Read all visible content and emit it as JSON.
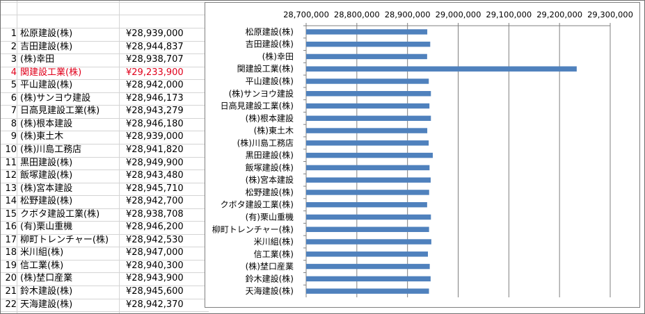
{
  "table": {
    "rows": [
      {
        "no": "1",
        "name": "松原建設(株)",
        "value": "¥28,939,000"
      },
      {
        "no": "2",
        "name": "吉田建設(株)",
        "value": "¥28,944,837"
      },
      {
        "no": "3",
        "name": "(株)幸田",
        "value": "¥28,938,707"
      },
      {
        "no": "4",
        "name": "関建設工業(株)",
        "value": "¥29,233,900",
        "highlight": true
      },
      {
        "no": "5",
        "name": "平山建設(株)",
        "value": "¥28,942,000"
      },
      {
        "no": "6",
        "name": "(株)サンヨウ建設",
        "value": "¥28,946,173"
      },
      {
        "no": "7",
        "name": "日高見建設工業(株)",
        "value": "¥28,943,279"
      },
      {
        "no": "8",
        "name": "(株)根本建設",
        "value": "¥28,946,180"
      },
      {
        "no": "9",
        "name": "(株)東土木",
        "value": "¥28,939,000"
      },
      {
        "no": "10",
        "name": "(株)川島工務店",
        "value": "¥28,941,820"
      },
      {
        "no": "11",
        "name": "黒田建設(株)",
        "value": "¥28,949,900"
      },
      {
        "no": "12",
        "name": "飯塚建設(株)",
        "value": "¥28,943,480"
      },
      {
        "no": "13",
        "name": "(株)宮本建設",
        "value": "¥28,945,710"
      },
      {
        "no": "14",
        "name": "松野建設(株)",
        "value": "¥28,942,700"
      },
      {
        "no": "15",
        "name": "クボタ建設工業(株)",
        "value": "¥28,938,708"
      },
      {
        "no": "16",
        "name": "(有)栗山重機",
        "value": "¥28,946,200"
      },
      {
        "no": "17",
        "name": "柳町トレンチャー(株)",
        "value": "¥28,942,530"
      },
      {
        "no": "18",
        "name": "米川組(株)",
        "value": "¥28,947,000"
      },
      {
        "no": "19",
        "name": "信工業(株)",
        "value": "¥28,940,300"
      },
      {
        "no": "20",
        "name": "(株)埜口産業",
        "value": "¥28,943,900"
      },
      {
        "no": "21",
        "name": "鈴木建設(株)",
        "value": "¥28,945,600"
      },
      {
        "no": "22",
        "name": "天海建設(株)",
        "value": "¥28,942,370"
      }
    ],
    "highlight_color": "#e0001b"
  },
  "chart_data": {
    "type": "bar",
    "orientation": "horizontal",
    "categories": [
      "松原建設(株)",
      "吉田建設(株)",
      "(株)幸田",
      "関建設工業(株)",
      "平山建設(株)",
      "(株)サンヨウ建設",
      "日高見建設工業(株)",
      "(株)根本建設",
      "(株)東土木",
      "(株)川島工務店",
      "黒田建設(株)",
      "飯塚建設(株)",
      "(株)宮本建設",
      "松野建設(株)",
      "クボタ建設工業(株)",
      "(有)栗山重機",
      "柳町トレンチャー(株)",
      "米川組(株)",
      "信工業(株)",
      "(株)埜口産業",
      "鈴木建設(株)",
      "天海建設(株)"
    ],
    "values": [
      28939000,
      28944837,
      28938707,
      29233900,
      28942000,
      28946173,
      28943279,
      28946180,
      28939000,
      28941820,
      28949900,
      28943480,
      28945710,
      28942700,
      28938708,
      28946200,
      28942530,
      28947000,
      28940300,
      28943900,
      28945600,
      28942370
    ],
    "xlim": [
      28700000,
      29300000
    ],
    "xticks": [
      28700000,
      28800000,
      28900000,
      29000000,
      29100000,
      29200000,
      29300000
    ],
    "xtick_labels": [
      "28,700,000",
      "28,800,000",
      "28,900,000",
      "29,000,000",
      "29,100,000",
      "29,200,000",
      "29,300,000"
    ],
    "x_axis_position": "top",
    "gridlines": true,
    "legend": "none",
    "title": "",
    "xlabel": "",
    "ylabel": "",
    "bar_color": "#4f81bd"
  }
}
